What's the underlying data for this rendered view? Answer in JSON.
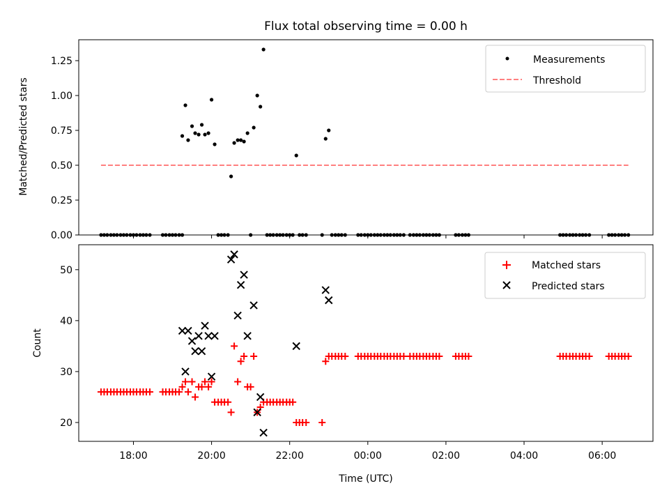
{
  "chart_data": [
    {
      "type": "scatter",
      "title": "Flux total observing time = 0.00 h",
      "xlabel": "",
      "ylabel": "Matched/Predicted stars",
      "ylim": [
        0.0,
        1.4
      ],
      "yticks": [
        0.0,
        0.25,
        0.5,
        0.75,
        1.0,
        1.25
      ],
      "ytick_labels": [
        "0.00",
        "0.25",
        "0.50",
        "0.75",
        "1.00",
        "1.25"
      ],
      "xlim_hours": [
        16.6,
        31.3
      ],
      "xticks_hours": [
        18,
        20,
        22,
        24,
        26,
        28,
        30
      ],
      "show_xtick_labels": false,
      "legend_position": "top-right",
      "series": [
        {
          "name": "Measurements",
          "marker": "dot",
          "color": "#000000",
          "x": [
            19.25,
            19.33,
            19.4,
            19.5,
            19.58,
            19.67,
            19.75,
            19.83,
            19.92,
            20.0,
            20.08,
            20.5,
            20.58,
            20.67,
            20.75,
            20.83,
            20.92,
            21.0,
            21.08,
            21.17,
            21.25,
            21.33,
            22.17,
            22.92,
            23.0
          ],
          "y": [
            0.71,
            0.93,
            0.68,
            0.78,
            0.73,
            0.72,
            0.79,
            0.72,
            0.73,
            0.97,
            0.65,
            0.42,
            0.66,
            0.68,
            0.68,
            0.67,
            0.73,
            0.0,
            0.77,
            1.0,
            0.92,
            1.33,
            0.57,
            0.69,
            0.75
          ]
        },
        {
          "name": "Measurements (zero)",
          "marker": "dot",
          "color": "#000000",
          "x": [
            17.17,
            17.25,
            17.33,
            17.42,
            17.5,
            17.58,
            17.67,
            17.75,
            17.83,
            17.92,
            18.0,
            18.08,
            18.17,
            18.25,
            18.33,
            18.42,
            18.75,
            18.83,
            18.92,
            19.0,
            19.08,
            19.17,
            19.25,
            20.17,
            20.25,
            20.33,
            20.42,
            21.42,
            21.5,
            21.58,
            21.67,
            21.75,
            21.83,
            21.92,
            22.0,
            22.08,
            22.25,
            22.33,
            22.42,
            22.83,
            23.08,
            23.17,
            23.25,
            23.33,
            23.42,
            23.75,
            23.83,
            23.92,
            24.0,
            24.08,
            24.17,
            24.25,
            24.33,
            24.42,
            24.5,
            24.58,
            24.67,
            24.75,
            24.83,
            24.92,
            25.08,
            25.17,
            25.25,
            25.33,
            25.42,
            25.5,
            25.58,
            25.67,
            25.75,
            25.83,
            26.25,
            26.33,
            26.42,
            26.5,
            26.58,
            28.92,
            29.0,
            29.08,
            29.17,
            29.25,
            29.33,
            29.42,
            29.5,
            29.58,
            29.67,
            30.17,
            30.25,
            30.33,
            30.42,
            30.5,
            30.58,
            30.67
          ],
          "y_constant": 0.0
        },
        {
          "name": "Threshold",
          "line": "dashed",
          "color": "#ff7f7f",
          "x": [
            17.17,
            30.67
          ],
          "y": [
            0.5,
            0.5
          ]
        }
      ],
      "legend": [
        "Measurements",
        "Threshold"
      ]
    },
    {
      "type": "scatter",
      "title": "",
      "xlabel": "Time (UTC)",
      "ylabel": "Count",
      "ylim": [
        16.3,
        54.9
      ],
      "yticks": [
        20,
        30,
        40,
        50
      ],
      "ytick_labels": [
        "20",
        "30",
        "40",
        "50"
      ],
      "xlim_hours": [
        16.6,
        31.3
      ],
      "xticks_hours": [
        18,
        20,
        22,
        24,
        26,
        28,
        30
      ],
      "xtick_labels": [
        "18:00",
        "20:00",
        "22:00",
        "00:00",
        "02:00",
        "04:00",
        "06:00"
      ],
      "legend_position": "top-right",
      "series": [
        {
          "name": "Matched stars",
          "marker": "plus",
          "color": "#ff0000",
          "x": [
            17.17,
            17.25,
            17.33,
            17.42,
            17.5,
            17.58,
            17.67,
            17.75,
            17.83,
            17.92,
            18.0,
            18.08,
            18.17,
            18.25,
            18.33,
            18.42,
            18.75,
            18.83,
            18.92,
            19.0,
            19.08,
            19.17,
            19.25,
            19.33,
            19.4,
            19.5,
            19.58,
            19.67,
            19.75,
            19.83,
            19.92,
            20.0,
            20.08,
            20.17,
            20.25,
            20.33,
            20.42,
            20.5,
            20.58,
            20.67,
            20.75,
            20.83,
            20.92,
            21.0,
            21.08,
            21.17,
            21.25,
            21.33,
            21.42,
            21.5,
            21.58,
            21.67,
            21.75,
            21.83,
            21.92,
            22.0,
            22.08,
            22.17,
            22.25,
            22.33,
            22.42,
            22.83,
            22.92,
            23.0,
            23.08,
            23.17,
            23.25,
            23.33,
            23.42,
            23.75,
            23.83,
            23.92,
            24.0,
            24.08,
            24.17,
            24.25,
            24.33,
            24.42,
            24.5,
            24.58,
            24.67,
            24.75,
            24.83,
            24.92,
            25.08,
            25.17,
            25.25,
            25.33,
            25.42,
            25.5,
            25.58,
            25.67,
            25.75,
            25.83,
            26.25,
            26.33,
            26.42,
            26.5,
            26.58,
            28.92,
            29.0,
            29.08,
            29.17,
            29.25,
            29.33,
            29.42,
            29.5,
            29.58,
            29.67,
            30.17,
            30.25,
            30.33,
            30.42,
            30.5,
            30.58,
            30.67
          ],
          "y": [
            26,
            26,
            26,
            26,
            26,
            26,
            26,
            26,
            26,
            26,
            26,
            26,
            26,
            26,
            26,
            26,
            26,
            26,
            26,
            26,
            26,
            26,
            27,
            28,
            26,
            28,
            25,
            27,
            27,
            28,
            27,
            28,
            24,
            24,
            24,
            24,
            24,
            22,
            35,
            28,
            32,
            33,
            27,
            27,
            33,
            22,
            23,
            24,
            24,
            24,
            24,
            24,
            24,
            24,
            24,
            24,
            24,
            20,
            20,
            20,
            20,
            20,
            32,
            33,
            33,
            33,
            33,
            33,
            33,
            33,
            33,
            33,
            33,
            33,
            33,
            33,
            33,
            33,
            33,
            33,
            33,
            33,
            33,
            33,
            33,
            33,
            33,
            33,
            33,
            33,
            33,
            33,
            33,
            33,
            33,
            33,
            33,
            33,
            33,
            33,
            33,
            33,
            33,
            33,
            33,
            33,
            33,
            33,
            33,
            33,
            33,
            33,
            33,
            33,
            33,
            33
          ]
        },
        {
          "name": "Predicted stars",
          "marker": "x",
          "color": "#000000",
          "x": [
            19.25,
            19.33,
            19.4,
            19.5,
            19.58,
            19.67,
            19.75,
            19.83,
            19.92,
            20.0,
            20.08,
            20.5,
            20.58,
            20.67,
            20.75,
            20.83,
            20.92,
            21.08,
            21.17,
            21.25,
            21.33,
            22.17,
            22.92,
            23.0
          ],
          "y": [
            38,
            30,
            38,
            36,
            34,
            37,
            34,
            39,
            37,
            29,
            37,
            52,
            53,
            41,
            47,
            49,
            37,
            43,
            22,
            25,
            18,
            35,
            46,
            44
          ]
        }
      ],
      "legend": [
        "Matched stars",
        "Predicted stars"
      ]
    }
  ]
}
